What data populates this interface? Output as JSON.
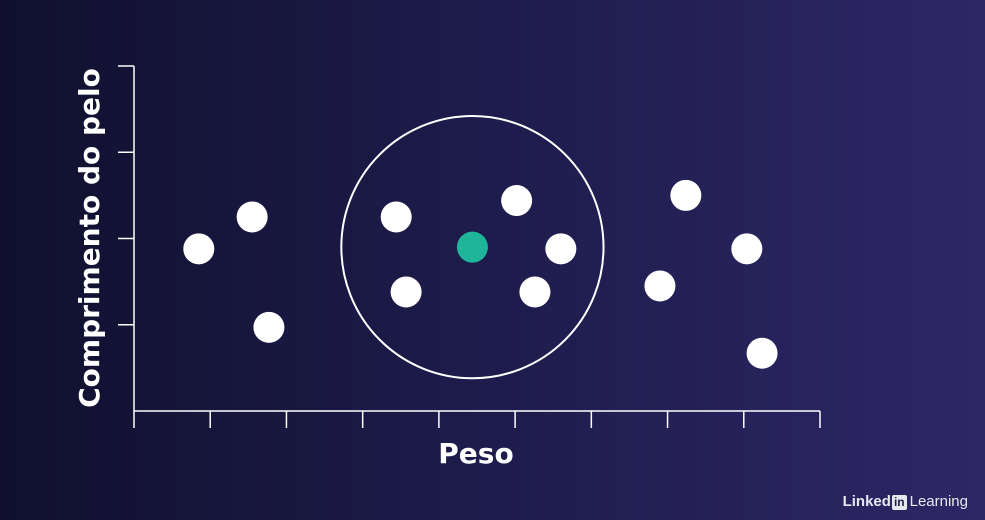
{
  "chart_data": {
    "type": "scatter",
    "xlabel": "Peso",
    "ylabel": "Comprimento do pelo",
    "xlim": [
      0,
      9
    ],
    "ylim": [
      0,
      4
    ],
    "x_ticks": [
      0,
      1,
      2,
      3,
      4,
      5,
      6,
      7,
      8,
      9
    ],
    "y_ticks": [
      0,
      1,
      2,
      3,
      4
    ],
    "x_tick_labels": [],
    "y_tick_labels": [],
    "grid": false,
    "legend": null,
    "points": [
      {
        "x": 0.85,
        "y": 1.88
      },
      {
        "x": 1.55,
        "y": 2.25
      },
      {
        "x": 1.77,
        "y": 0.97
      },
      {
        "x": 3.44,
        "y": 2.25
      },
      {
        "x": 3.57,
        "y": 1.38
      },
      {
        "x": 5.02,
        "y": 2.44
      },
      {
        "x": 5.26,
        "y": 1.38
      },
      {
        "x": 5.6,
        "y": 1.88
      },
      {
        "x": 6.9,
        "y": 1.45
      },
      {
        "x": 7.24,
        "y": 2.5
      },
      {
        "x": 8.04,
        "y": 1.88
      },
      {
        "x": 8.24,
        "y": 0.67
      }
    ],
    "highlight_point": {
      "x": 4.44,
      "y": 1.9
    },
    "neighborhood_radius": 1.72,
    "colors": {
      "points": "#ffffff",
      "highlight": "#1fb59a",
      "axes": "#ffffff",
      "background_start": "#10102e",
      "background_end": "#2d2766"
    }
  },
  "watermark": {
    "brand_prefix": "Linked",
    "brand_in": "in",
    "brand_suffix": "Learning"
  }
}
